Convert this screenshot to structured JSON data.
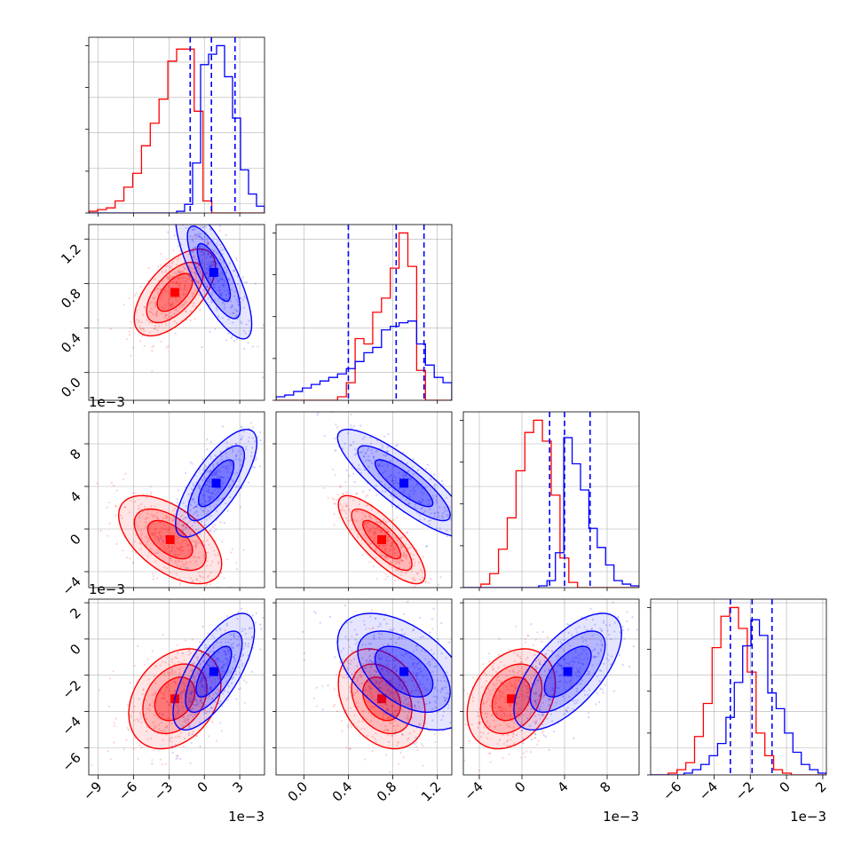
{
  "figure": {
    "colors": {
      "series_a": "#ff0000",
      "series_b": "#0000ff",
      "grid": "#b0b0b0",
      "axes": "#000000"
    }
  },
  "chart_data": {
    "type": "corner-plot",
    "grid": true,
    "series": [
      {
        "key": "series_a",
        "color": "#ff0000"
      },
      {
        "key": "series_b",
        "color": "#0000ff"
      }
    ],
    "parameters": [
      {
        "key": "p0",
        "range": [
          -0.0098,
          0.0051
        ],
        "ticks": [
          -0.009,
          -0.006,
          -0.003,
          0,
          0.003
        ],
        "tick_labels": [
          "−9",
          "−6",
          "−3",
          "0",
          "3"
        ],
        "offset_label": "1e−3"
      },
      {
        "key": "p1",
        "range": [
          -0.25,
          1.33
        ],
        "ticks": [
          0.0,
          0.4,
          0.8,
          1.2
        ],
        "tick_labels": [
          "0.0",
          "0.4",
          "0.8",
          "1.2"
        ],
        "offset_label": ""
      },
      {
        "key": "p2",
        "range": [
          -0.0055,
          0.011
        ],
        "ticks": [
          -0.004,
          0,
          0.004,
          0.008
        ],
        "tick_labels": [
          "−4",
          "0",
          "4",
          "8"
        ],
        "offset_label": "1e−3"
      },
      {
        "key": "p3",
        "range": [
          -0.0075,
          0.0022
        ],
        "ticks": [
          -0.006,
          -0.004,
          -0.002,
          0,
          0.002
        ],
        "tick_labels": [
          "−6",
          "−4",
          "−2",
          "0",
          "2"
        ],
        "offset_label": "1e−3"
      }
    ],
    "histograms": [
      {
        "param": 0,
        "series_a": [
          1,
          2,
          3,
          7,
          15,
          23,
          39,
          52,
          66,
          88,
          95,
          95,
          59,
          7,
          0,
          0,
          0,
          0,
          0,
          0
        ],
        "series_b": [
          0,
          0,
          0,
          0,
          0,
          0,
          0,
          0,
          0,
          0,
          0,
          1,
          5,
          29,
          86,
          92,
          97,
          79,
          55,
          25,
          11,
          4
        ],
        "series_b_quantiles": [
          -0.0012,
          0.0006,
          0.0026
        ]
      },
      {
        "param": 1,
        "series_a": [
          0,
          0,
          0,
          0,
          0,
          0,
          0,
          2,
          10,
          35,
          32,
          50,
          58,
          75,
          95,
          76,
          17,
          0,
          0,
          0
        ],
        "series_b": [
          2,
          3,
          5,
          7,
          9,
          11,
          13,
          15,
          18,
          22,
          27,
          30,
          40,
          42,
          44,
          45,
          32,
          20,
          13,
          10
        ],
        "series_b_quantiles": [
          0.4,
          0.83,
          1.08
        ]
      },
      {
        "param": 2,
        "series_a": [
          0,
          0,
          2,
          8,
          22,
          40,
          67,
          89,
          96,
          84,
          53,
          17,
          3,
          0,
          0,
          0,
          0,
          0,
          0,
          0
        ],
        "series_b": [
          0,
          0,
          0,
          0,
          0,
          0,
          0,
          0,
          0,
          1,
          4,
          20,
          86,
          71,
          56,
          34,
          23,
          13,
          4,
          2,
          1
        ],
        "series_b_quantiles": [
          0.0026,
          0.004,
          0.0064
        ]
      },
      {
        "param": 3,
        "series_a": [
          0,
          0,
          1,
          3,
          7,
          22,
          41,
          73,
          91,
          96,
          84,
          59,
          24,
          11,
          3,
          1,
          0,
          0,
          0,
          0
        ],
        "series_b": [
          0,
          0,
          0,
          0,
          1,
          3,
          6,
          11,
          18,
          33,
          53,
          74,
          89,
          80,
          47,
          38,
          24,
          13,
          6,
          3,
          1
        ],
        "series_b_quantiles": [
          -0.0031,
          -0.0019,
          -0.0008
        ]
      }
    ],
    "joint": [
      {
        "x": 0,
        "y": 1,
        "series_a": {
          "mean": [
            -0.0025,
            0.72
          ],
          "sd": [
            0.0015,
            0.17
          ],
          "rho": 0.6
        },
        "series_b": {
          "mean": [
            0.0008,
            0.9
          ],
          "sd": [
            0.0014,
            0.26
          ],
          "rho": -0.78
        }
      },
      {
        "x": 0,
        "y": 2,
        "series_a": {
          "mean": [
            -0.0029,
            -0.001
          ],
          "sd": [
            0.0019,
            0.0018
          ],
          "rho": -0.55
        },
        "series_b": {
          "mean": [
            0.001,
            0.0043
          ],
          "sd": [
            0.0015,
            0.0022
          ],
          "rho": 0.75
        }
      },
      {
        "x": 0,
        "y": 3,
        "series_a": {
          "mean": [
            -0.0025,
            -0.0033
          ],
          "sd": [
            0.0017,
            0.0012
          ],
          "rho": 0.3
        },
        "series_b": {
          "mean": [
            0.0008,
            -0.0018
          ],
          "sd": [
            0.0015,
            0.0014
          ],
          "rho": 0.7
        }
      },
      {
        "x": 1,
        "y": 2,
        "series_a": {
          "mean": [
            0.7,
            -0.001
          ],
          "sd": [
            0.17,
            0.0018
          ],
          "rho": -0.8
        },
        "series_b": {
          "mean": [
            0.9,
            0.0043
          ],
          "sd": [
            0.26,
            0.0022
          ],
          "rho": -0.85
        }
      },
      {
        "x": 1,
        "y": 3,
        "series_a": {
          "mean": [
            0.7,
            -0.0033
          ],
          "sd": [
            0.17,
            0.0012
          ],
          "rho": -0.3
        },
        "series_b": {
          "mean": [
            0.9,
            -0.0018
          ],
          "sd": [
            0.26,
            0.0014
          ],
          "rho": -0.5
        }
      },
      {
        "x": 2,
        "y": 3,
        "series_a": {
          "mean": [
            -0.001,
            -0.0033
          ],
          "sd": [
            0.0018,
            0.0012
          ],
          "rho": 0.3
        },
        "series_b": {
          "mean": [
            0.0043,
            -0.0018
          ],
          "sd": [
            0.0022,
            0.0014
          ],
          "rho": 0.65
        }
      }
    ]
  }
}
